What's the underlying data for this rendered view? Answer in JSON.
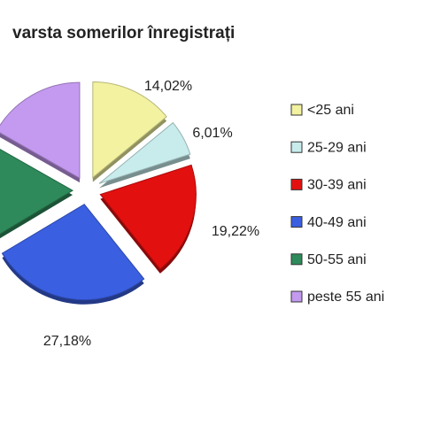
{
  "chart_data": {
    "type": "pie",
    "title": "varsta somerilor înregistrați",
    "categories": [
      "<25 ani",
      "25-29 ani",
      "30-39 ani",
      "40-49 ani",
      "50-55 ani",
      "peste 55 ani"
    ],
    "values": [
      14.02,
      6.01,
      19.22,
      27.18,
      16.8,
      16.77
    ],
    "value_labels": [
      "14,02%",
      "6,01%",
      "19,22%",
      "27,18%",
      null,
      null
    ],
    "colors": [
      "#f2f2a0",
      "#c8ecec",
      "#e31010",
      "#3a5fe0",
      "#2e8a5a",
      "#c49af0"
    ],
    "legend": "right"
  }
}
